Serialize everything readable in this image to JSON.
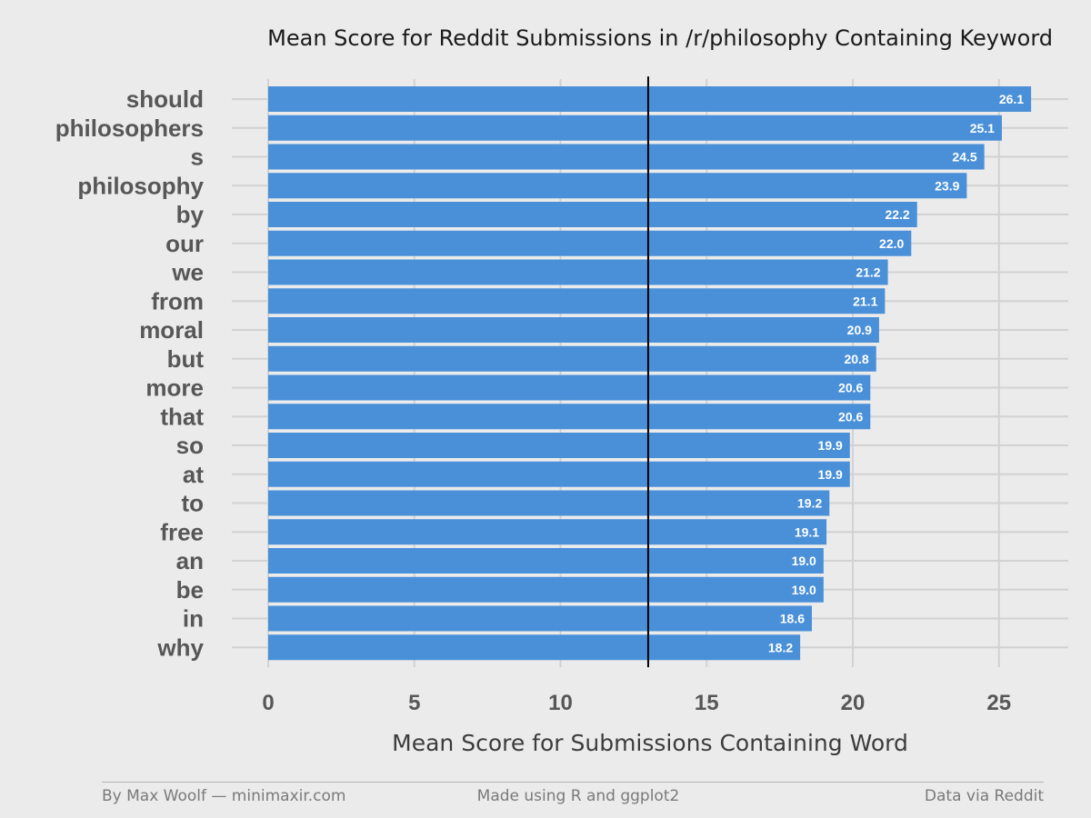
{
  "chart_data": {
    "type": "bar",
    "orientation": "horizontal",
    "title": "Mean Score for Reddit Submissions in /r/philosophy Containing Keyword",
    "xlabel": "Mean Score for Submissions Containing Word",
    "ylabel": "",
    "categories": [
      "should",
      "philosophers",
      "s",
      "philosophy",
      "by",
      "our",
      "we",
      "from",
      "moral",
      "but",
      "more",
      "that",
      "so",
      "at",
      "to",
      "free",
      "an",
      "be",
      "in",
      "why"
    ],
    "values": [
      26.1,
      25.1,
      24.5,
      23.9,
      22.2,
      22.0,
      21.2,
      21.1,
      20.9,
      20.8,
      20.6,
      20.6,
      19.9,
      19.9,
      19.2,
      19.1,
      19.0,
      19.0,
      18.6,
      18.2
    ],
    "value_labels": [
      "26.1",
      "25.1",
      "24.5",
      "23.9",
      "22.2",
      "22.0",
      "21.2",
      "21.1",
      "20.9",
      "20.8",
      "20.6",
      "20.6",
      "19.9",
      "19.9",
      "19.2",
      "19.1",
      "19.0",
      "19.0",
      "18.6",
      "18.2"
    ],
    "xlim": [
      0,
      26.1
    ],
    "xticks": [
      0,
      5,
      10,
      15,
      20,
      25
    ],
    "xtick_labels": [
      "0",
      "5",
      "10",
      "15",
      "20",
      "25"
    ],
    "reference_line": 13,
    "grid": true,
    "legend": "none",
    "bar_color": "#4a90d9",
    "background_color": "#ebebeb",
    "grid_color": "#d2d2d2",
    "reference_line_color": "#000000"
  },
  "footer": {
    "left": "By Max Woolf — minimaxir.com",
    "center": "Made using R and ggplot2",
    "right": "Data via Reddit"
  }
}
